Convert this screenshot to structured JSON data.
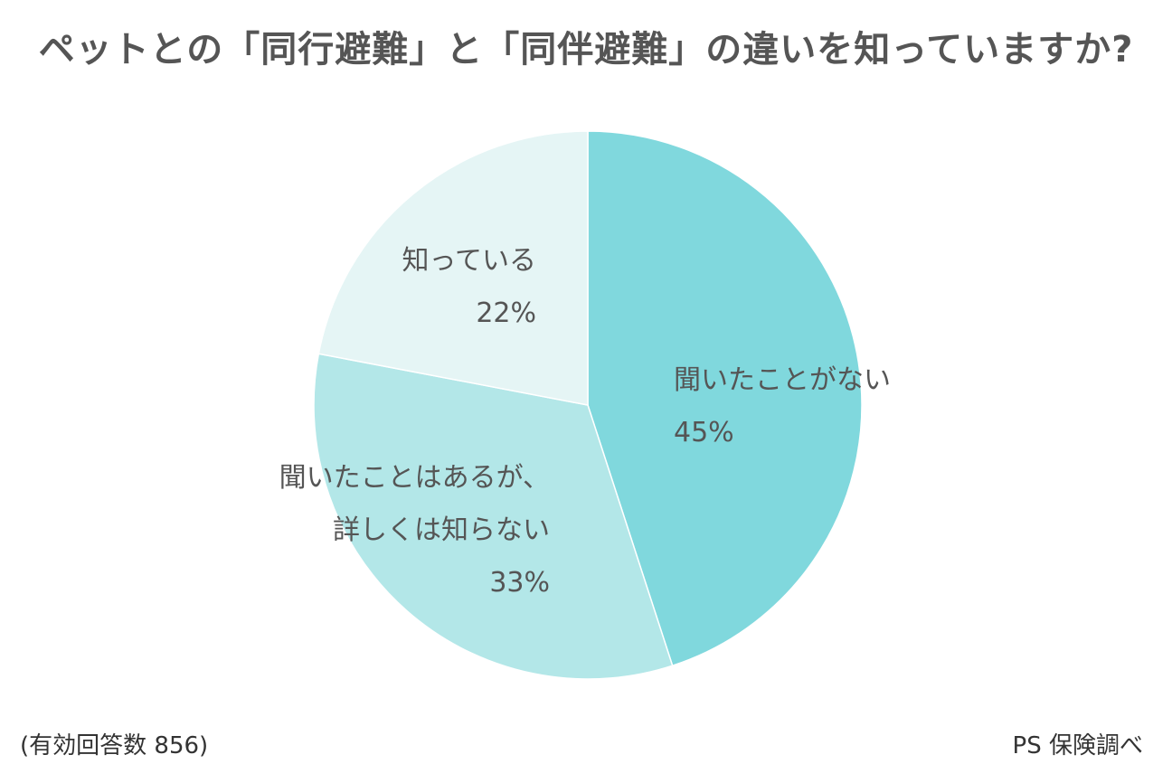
{
  "chart_data": {
    "type": "pie",
    "title": "ペットとの「同行避難」と「同伴避難」の違いを知っていますか?",
    "slices": [
      {
        "label_lines": [
          "聞いたことがない"
        ],
        "value": 45,
        "value_label": "45%",
        "color": "#80d8dd"
      },
      {
        "label_lines": [
          "聞いたことはあるが、",
          "詳しくは知らない"
        ],
        "value": 33,
        "value_label": "33%",
        "color": "#b3e7e8"
      },
      {
        "label_lines": [
          "知っている"
        ],
        "value": 22,
        "value_label": "22%",
        "color": "#e5f5f5"
      }
    ],
    "start_angle": "12 o'clock",
    "direction": "clockwise",
    "note": "(有効回答数 856)",
    "source": "PS 保険調べ"
  }
}
